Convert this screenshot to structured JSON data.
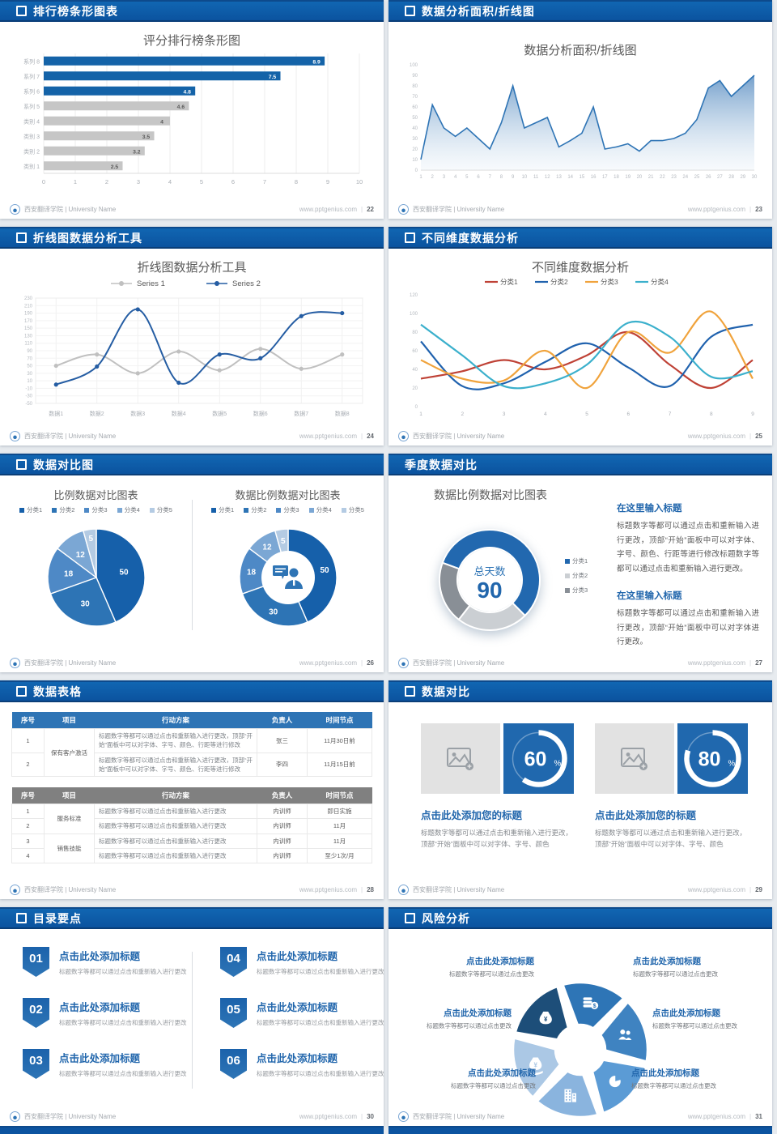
{
  "footer": {
    "brand": "西安翻译学院 | University Name",
    "site": "www.pptgenius.com",
    "sep": "|"
  },
  "slides": [
    {
      "title": "排行榜条形图表",
      "page": "22"
    },
    {
      "title": "数据分析面积/折线图",
      "page": "23"
    },
    {
      "title": "折线图数据分析工具",
      "page": "24"
    },
    {
      "title": "不同维度数据分析",
      "page": "25"
    },
    {
      "title": "数据对比图",
      "page": "26"
    },
    {
      "title": "季度数据对比",
      "page": "27"
    },
    {
      "title": "数据表格",
      "page": "28"
    },
    {
      "title": "数据对比",
      "page": "29"
    },
    {
      "title": "目录要点",
      "page": "30"
    },
    {
      "title": "风险分析",
      "page": "31"
    }
  ],
  "chart_data": [
    {
      "type": "bar",
      "orientation": "horizontal",
      "title": "评分排行榜条形图",
      "categories": [
        "系列 8",
        "系列 7",
        "系列 6",
        "系列 5",
        "类别 4",
        "类别 3",
        "类别 2",
        "类别 1"
      ],
      "values": [
        8.9,
        7.5,
        4.8,
        4.6,
        4,
        3.5,
        3.2,
        2.5
      ],
      "bar_colors": [
        "#1463a8",
        "#1463a8",
        "#1463a8",
        "#c6c6c6",
        "#c6c6c6",
        "#c6c6c6",
        "#c6c6c6",
        "#c6c6c6"
      ],
      "label_colors": [
        "#ffffff",
        "#ffffff",
        "#ffffff",
        "#595959",
        "#595959",
        "#595959",
        "#595959",
        "#595959"
      ],
      "xlim": [
        0,
        10
      ],
      "xticks": [
        0,
        1,
        2,
        3,
        4,
        5,
        6,
        7,
        8,
        9,
        10
      ],
      "grid": true
    },
    {
      "type": "area",
      "title": "数据分析面积/折线图",
      "x": [
        1,
        2,
        3,
        4,
        5,
        6,
        7,
        8,
        9,
        10,
        11,
        12,
        13,
        14,
        15,
        16,
        17,
        18,
        19,
        20,
        21,
        22,
        23,
        24,
        25,
        26,
        27,
        28,
        29,
        30
      ],
      "values": [
        10,
        62,
        40,
        32,
        40,
        30,
        20,
        45,
        80,
        40,
        45,
        50,
        22,
        28,
        35,
        60,
        20,
        22,
        25,
        18,
        28,
        28,
        30,
        35,
        48,
        78,
        85,
        70,
        80,
        90
      ],
      "ylim": [
        0,
        100
      ],
      "ytick_step": 10,
      "line_color": "#2e74b5",
      "fill_top": "#6d9bc9",
      "fill_bottom": "#e9f1f8"
    },
    {
      "type": "line",
      "title": "折线图数据分析工具",
      "categories": [
        "数据1",
        "数据2",
        "数据3",
        "数据4",
        "数据5",
        "数据6",
        "数据7",
        "数据8"
      ],
      "ylim": [
        -50,
        230
      ],
      "ytick_step": 20,
      "legend_position": "top",
      "grid": true,
      "series": [
        {
          "name": "Series 1",
          "color": "#c0c0c0",
          "values": [
            50,
            80,
            30,
            88,
            38,
            95,
            42,
            80
          ]
        },
        {
          "name": "Series 2",
          "color": "#255da3",
          "values": [
            0,
            48,
            200,
            5,
            80,
            70,
            182,
            190
          ]
        }
      ]
    },
    {
      "type": "line",
      "title": "不同维度数据分析",
      "x": [
        1,
        2,
        3,
        4,
        5,
        6,
        7,
        8,
        9
      ],
      "ylim": [
        0,
        120
      ],
      "ytick_step": 20,
      "legend_position": "top",
      "grid": false,
      "series": [
        {
          "name": "分类1",
          "color": "#bf4236",
          "values": [
            30,
            38,
            50,
            40,
            55,
            80,
            45,
            20,
            50
          ]
        },
        {
          "name": "分类2",
          "color": "#2062ae",
          "values": [
            70,
            22,
            25,
            48,
            68,
            42,
            22,
            75,
            88
          ]
        },
        {
          "name": "分类3",
          "color": "#f0a33c",
          "values": [
            50,
            30,
            28,
            60,
            20,
            80,
            58,
            102,
            30
          ]
        },
        {
          "name": "分类4",
          "color": "#3bb0cc",
          "values": [
            88,
            55,
            22,
            25,
            45,
            90,
            75,
            32,
            38
          ]
        }
      ]
    },
    {
      "type": "pie",
      "title": "比例数据对比图表",
      "labels": [
        "分类1",
        "分类2",
        "分类3",
        "分类4",
        "分类5"
      ],
      "values": [
        50,
        30,
        18,
        12,
        5
      ],
      "colors": [
        "#1660aa",
        "#2d74b5",
        "#4e89c6",
        "#7ba7d4",
        "#b4cbe3"
      ]
    },
    {
      "type": "donut",
      "title": "数据比例数据对比图表",
      "labels": [
        "分类1",
        "分类2",
        "分类3",
        "分类4",
        "分类5"
      ],
      "values": [
        50,
        30,
        18,
        12,
        5
      ],
      "colors": [
        "#1660aa",
        "#2d74b5",
        "#4e89c6",
        "#7ba7d4",
        "#b4cbe3"
      ],
      "center_icon": "person-speech-icon"
    },
    {
      "type": "donut",
      "title": "数据比例数据对比图表",
      "labels": [
        "分类1",
        "分类2",
        "分类3"
      ],
      "values": [
        57,
        23,
        20
      ],
      "colors": [
        "#2268af",
        "#cbcfd3",
        "#898f96"
      ],
      "start_angle": 290,
      "center_label": "总天数",
      "center_value": "90"
    }
  ],
  "quarter": {
    "sections": [
      {
        "heading": "在这里输入标题",
        "para": "标题数字等都可以通过点击和重新输入进行更改，顶部“开始”面板中可以对字体、字号、颜色、行距等进行修改标题数字等都可以通过点击和重新输入进行更改。"
      },
      {
        "heading": "在这里输入标题",
        "para": "标题数字等都可以通过点击和重新输入进行更改，顶部“开始”面板中可以对字体进行更改。"
      }
    ]
  },
  "tables": {
    "t1": {
      "headers": [
        "序号",
        "项目",
        "行动方案",
        "负责人",
        "时间节点"
      ],
      "project": "保有客户激活",
      "rows": [
        {
          "no": "1",
          "action": "标题数字等都可以通过点击和重新输入进行更改，顶部“开始”面板中可以对字体、字号、颜色、行距等进行修改",
          "owner": "张三",
          "time": "11月30日前"
        },
        {
          "no": "2",
          "action": "标题数字等都可以通过点击和重新输入进行更改，顶部“开始”面板中可以对字体、字号、颜色、行距等进行修改",
          "owner": "李四",
          "time": "11月15日前"
        }
      ]
    },
    "t2": {
      "headers": [
        "序号",
        "项目",
        "行动方案",
        "负责人",
        "时间节点"
      ],
      "projects": [
        "服务标准",
        "销售技能"
      ],
      "rows": [
        {
          "no": "1",
          "action": "标题数字等都可以通过点击和重新输入进行更改",
          "owner": "内训师",
          "time": "即日实施"
        },
        {
          "no": "2",
          "action": "标题数字等都可以通过点击和重新输入进行更改",
          "owner": "内训师",
          "time": "11月"
        },
        {
          "no": "3",
          "action": "标题数字等都可以通过点击和重新输入进行更改",
          "owner": "内训师",
          "time": "11月"
        },
        {
          "no": "4",
          "action": "标题数字等都可以通过点击和重新输入进行更改",
          "owner": "内训师",
          "time": "至少1次/月"
        }
      ]
    }
  },
  "compare": {
    "cards": [
      {
        "percent": 60,
        "unit": "%",
        "title": "点击此处添加您的标题",
        "caption": "标题数字等都可以通过点击和重新输入进行更改，顶部“开始”面板中可以对字体、字号、颜色"
      },
      {
        "percent": 80,
        "unit": "%",
        "title": "点击此处添加您的标题",
        "caption": "标题数字等都可以通过点击和重新输入进行更改，顶部“开始”面板中可以对字体、字号、颜色"
      }
    ]
  },
  "toc": {
    "items": [
      {
        "num": "01",
        "title": "点击此处添加标题",
        "caption": "标题数字等都可以通过点击和重新输入进行更改"
      },
      {
        "num": "02",
        "title": "点击此处添加标题",
        "caption": "标题数字等都可以通过点击和重新输入进行更改"
      },
      {
        "num": "03",
        "title": "点击此处添加标题",
        "caption": "标题数字等都可以通过点击和重新输入进行更改"
      },
      {
        "num": "04",
        "title": "点击此处添加标题",
        "caption": "标题数字等都可以通过点击和重新输入进行更改"
      },
      {
        "num": "05",
        "title": "点击此处添加标题",
        "caption": "标题数字等都可以通过点击和重新输入进行更改"
      },
      {
        "num": "06",
        "title": "点击此处添加标题",
        "caption": "标题数字等都可以通过点击和重新输入进行更改"
      }
    ]
  },
  "risk": {
    "items": [
      {
        "title": "点击此处添加标题",
        "caption": "标题数字等都可以通过点击更改"
      },
      {
        "title": "点击此处添加标题",
        "caption": "标题数字等都可以通过点击更改"
      },
      {
        "title": "点击此处添加标题",
        "caption": "标题数字等都可以通过点击更改"
      },
      {
        "title": "点击此处添加标题",
        "caption": "标题数字等都可以通过点击更改"
      },
      {
        "title": "点击此处添加标题",
        "caption": "标题数字等都可以通过点击更改"
      },
      {
        "title": "点击此处添加标题",
        "caption": "标题数字等都可以通过点击更改"
      }
    ],
    "icons": [
      "money-bag-icon",
      "coins-icon",
      "people-icon",
      "pie-chart-icon",
      "building-icon",
      "hand-money-icon"
    ],
    "petal_colors": [
      "#1d4e79",
      "#2e75b6",
      "#3f83c1",
      "#5b9bd5",
      "#8ab4de",
      "#abc8e5"
    ]
  }
}
